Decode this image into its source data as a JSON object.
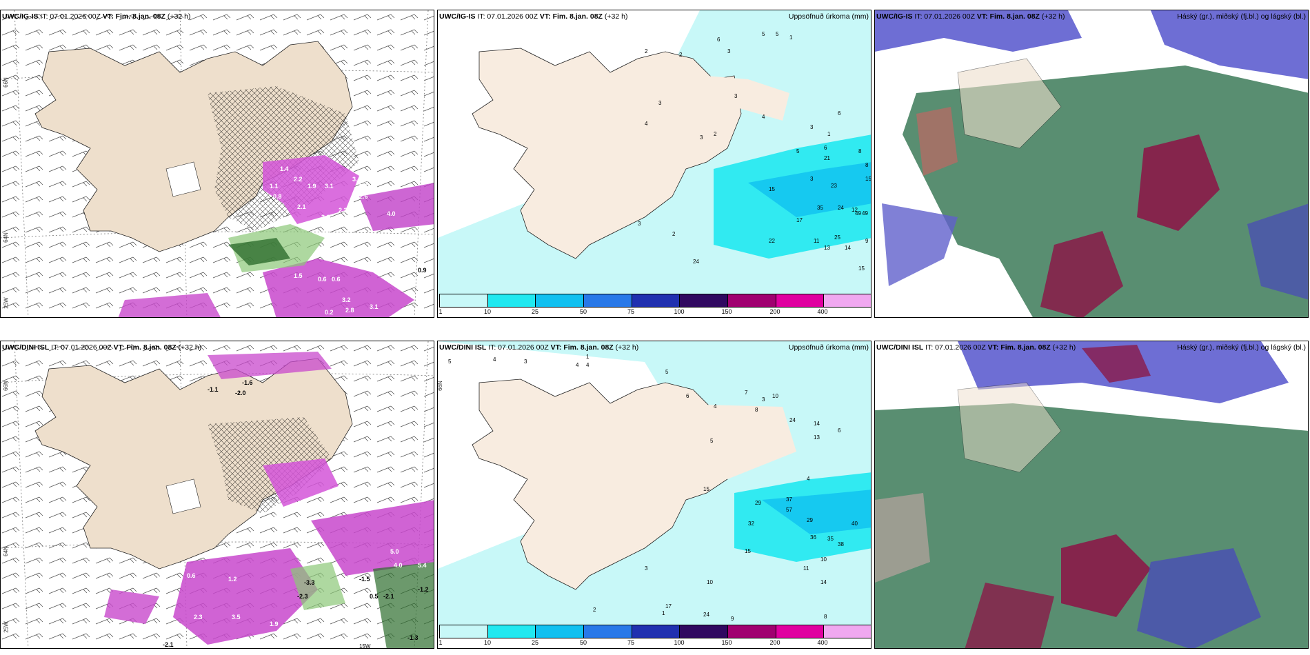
{
  "panels": {
    "p1": {
      "model": "UWC/IG-IS",
      "it_text": "IT: 07.01.2026 00Z",
      "vt_label": "VT: Fim. 8.jan. 08Z",
      "offset": "(+32 h)",
      "title_right": ""
    },
    "p2": {
      "model": "UWC/IG-IS",
      "it_text": "IT: 07.01.2026 00Z",
      "vt_label": "VT: Fim. 8.jan. 08Z",
      "offset": "(+32 h)",
      "title_right": "Uppsöfnuð úrkoma (mm)"
    },
    "p3": {
      "model": "UWC/IG-IS",
      "it_text": "IT: 07.01.2026 00Z",
      "vt_label": "VT: Fim. 8.jan. 08Z",
      "offset": "(+32 h)",
      "title_right": "Háský (gr.), miðský (fj.bl.) og lágský (bl.)"
    },
    "p4": {
      "model": "UWC/DINI ISL",
      "it_text": "IT: 07.01.2026 00Z",
      "vt_label": "VT: Fim. 8.jan. 08Z",
      "offset": "(+32 h)",
      "title_right": ""
    },
    "p5": {
      "model": "UWC/DINI ISL",
      "it_text": "IT: 07.01.2026 00Z",
      "vt_label": "VT: Fim. 8.jan. 08Z",
      "offset": "(+32 h)",
      "title_right": "Uppsöfnuð úrkoma (mm)"
    },
    "p6": {
      "model": "UWC/DINI ISL",
      "it_text": "IT: 07.01.2026 00Z",
      "vt_label": "VT: Fim. 8.jan. 08Z",
      "offset": "(+32 h)",
      "title_right": "Háský (gr.), miðský (fj.bl.) og lágský (bl.)"
    }
  },
  "colorbar": {
    "ticks": [
      "1",
      "10",
      "25",
      "50",
      "75",
      "100",
      "150",
      "200",
      "400"
    ],
    "colors": [
      "#c8f8f8",
      "#20e8f0",
      "#10c0f0",
      "#2878e8",
      "#2030b0",
      "#300860",
      "#a00070",
      "#e000a0",
      "#f0a8f0"
    ]
  },
  "lat_labels": {
    "p1": [
      "66N",
      "64N",
      "25W"
    ],
    "p4": [
      "66N",
      "64N",
      "25W",
      "15W"
    ],
    "p5": [
      "66N"
    ]
  },
  "precip_values_p2": [
    "6",
    "3",
    "5",
    "5",
    "1",
    "2",
    "3",
    "4",
    "3",
    "2",
    "3",
    "4",
    "3",
    "1",
    "6",
    "5",
    "6",
    "3",
    "15",
    "17",
    "11",
    "21",
    "23",
    "24",
    "35",
    "25",
    "13",
    "14",
    "12",
    "9",
    "15",
    "22",
    "24",
    "15",
    "49",
    "49",
    "8",
    "8",
    "3",
    "2",
    "2"
  ],
  "precip_values_p5": [
    "5",
    "4",
    "3",
    "1",
    "4",
    "4",
    "6",
    "5",
    "4",
    "3",
    "7",
    "8",
    "10",
    "14",
    "13",
    "24",
    "6",
    "5",
    "15",
    "29",
    "37",
    "57",
    "32",
    "29",
    "36",
    "35",
    "38",
    "40",
    "15",
    "10",
    "11",
    "24",
    "9",
    "14",
    "10",
    "8",
    "3",
    "1",
    "2",
    "17",
    "4"
  ],
  "temp_labels_p1": [
    "1.1",
    "2.2",
    "1.9",
    "3.1",
    "2.1",
    "3.0",
    "2.3",
    "2.9",
    "3.4",
    "0.8",
    "2.6",
    "1.5",
    "0.9",
    "0.6",
    "3.2",
    "2.8",
    "0.2",
    "3.1",
    "1.4",
    "4.0",
    "0.6"
  ],
  "temp_labels_p4": [
    "-1.1",
    "-2.0",
    "-1.6",
    "0.8",
    "0.4",
    "1.2",
    "3.5",
    "1.9",
    "1.6",
    "2.3",
    "-3.3",
    "-2.3",
    "-1.5",
    "0.5",
    "-2.1",
    "-1.2",
    "-1.3",
    "-2.1",
    "5.0",
    "4.0",
    "5.4",
    "0.6",
    "1.3"
  ]
}
